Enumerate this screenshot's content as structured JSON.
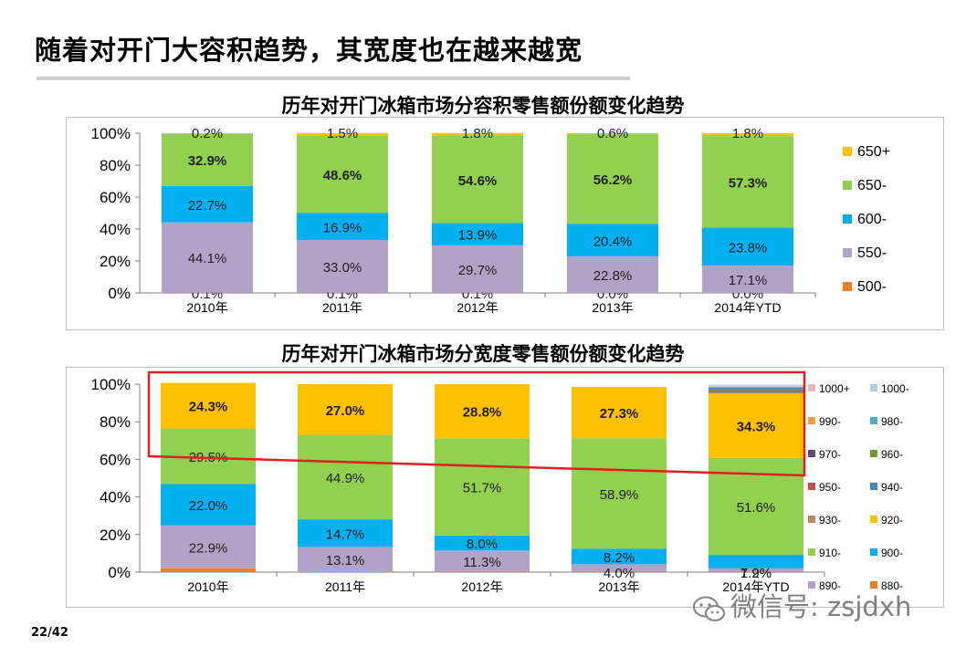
{
  "slide": {
    "title": "随着对开门大容积趋势，其宽度也在越来越宽",
    "page": "22/42",
    "watermark": "微信号: zsjdxh"
  },
  "chart_data": [
    {
      "type": "bar",
      "stacked": true,
      "title": "历年对开门冰箱市场分容积零售额份额变化趋势",
      "categories": [
        "2010年",
        "2011年",
        "2012年",
        "2013年",
        "2014年YTD"
      ],
      "ylim": [
        0,
        100
      ],
      "yticks": [
        "0%",
        "20%",
        "40%",
        "60%",
        "80%",
        "100%"
      ],
      "series": [
        {
          "name": "500-",
          "color": "#f57f20",
          "values": [
            0.1,
            0.1,
            0.1,
            0.0,
            0.0
          ],
          "labels": [
            "0.1%",
            "0.1%",
            "0.1%",
            "0.0%",
            "0.0%"
          ]
        },
        {
          "name": "550-",
          "color": "#b3a2c7",
          "values": [
            44.1,
            33.0,
            29.7,
            22.8,
            17.1
          ],
          "labels": [
            "44.1%",
            "33.0%",
            "29.7%",
            "22.8%",
            "17.1%"
          ]
        },
        {
          "name": "600-",
          "color": "#00b0f0",
          "values": [
            22.7,
            16.9,
            13.9,
            20.4,
            23.8
          ],
          "labels": [
            "22.7%",
            "16.9%",
            "13.9%",
            "20.4%",
            "23.8%"
          ]
        },
        {
          "name": "650-",
          "color": "#92d050",
          "values": [
            32.9,
            48.6,
            54.6,
            56.2,
            57.3
          ],
          "labels": [
            "32.9%",
            "48.6%",
            "54.6%",
            "56.2%",
            "57.3%"
          ]
        },
        {
          "name": "650+",
          "color": "#ffc000",
          "values": [
            0.2,
            1.5,
            1.8,
            0.6,
            1.8
          ],
          "labels": [
            "0.2%",
            "1.5%",
            "1.8%",
            "0.6%",
            "1.8%"
          ]
        }
      ],
      "legend_order": [
        "650+",
        "650-",
        "600-",
        "550-",
        "500-"
      ],
      "legend": "right"
    },
    {
      "type": "bar",
      "stacked": true,
      "title": "历年对开门冰箱市场分宽度零售额份额变化趋势",
      "categories": [
        "2010年",
        "2011年",
        "2012年",
        "2013年",
        "2014年YTD"
      ],
      "ylim": [
        0,
        100
      ],
      "yticks": [
        "0%",
        "20%",
        "40%",
        "60%",
        "80%",
        "100%"
      ],
      "series": [
        {
          "name": "880-",
          "color": "#f57f20",
          "values": [
            2.0,
            0.3,
            0.2,
            0.2,
            0.1
          ],
          "labels": [
            "",
            "",
            "",
            "",
            ""
          ]
        },
        {
          "name": "890-",
          "color": "#b3a2c7",
          "values": [
            22.9,
            13.1,
            11.3,
            4.0,
            1.9
          ],
          "labels": [
            "22.9%",
            "13.1%",
            "11.3%",
            "4.0%",
            "1.9%"
          ]
        },
        {
          "name": "900-",
          "color": "#00b0f0",
          "values": [
            22.0,
            14.7,
            8.0,
            8.2,
            7.2
          ],
          "labels": [
            "22.0%",
            "14.7%",
            "8.0%",
            "8.2%",
            "7.2%"
          ]
        },
        {
          "name": "910-",
          "color": "#92d050",
          "values": [
            29.5,
            44.9,
            51.7,
            58.9,
            51.6
          ],
          "labels": [
            "29.5%",
            "44.9%",
            "51.7%",
            "58.9%",
            "51.6%"
          ]
        },
        {
          "name": "920-",
          "color": "#ffc000",
          "values": [
            24.3,
            27.0,
            28.8,
            27.3,
            34.3
          ],
          "labels": [
            "24.3%",
            "27.0%",
            "28.8%",
            "27.3%",
            "34.3%"
          ]
        },
        {
          "name": "930-",
          "color": "#c0875a",
          "values": [
            0,
            0,
            0,
            0,
            0.5
          ],
          "labels": [
            "",
            "",
            "",
            "",
            ""
          ]
        },
        {
          "name": "940-",
          "color": "#4f81bd",
          "values": [
            0,
            0,
            0,
            0,
            1.0
          ],
          "labels": [
            "",
            "",
            "",
            "",
            ""
          ]
        },
        {
          "name": "950-",
          "color": "#c0504d",
          "values": [
            0,
            0,
            0,
            0,
            0.3
          ],
          "labels": [
            "",
            "",
            "",
            "",
            ""
          ]
        },
        {
          "name": "960-",
          "color": "#77933c",
          "values": [
            0,
            0,
            0,
            0,
            0.6
          ],
          "labels": [
            "",
            "",
            "",
            "",
            ""
          ]
        },
        {
          "name": "970-",
          "color": "#604a7b",
          "values": [
            0,
            0,
            0,
            0,
            0.3
          ],
          "labels": [
            "",
            "",
            "",
            "",
            ""
          ]
        },
        {
          "name": "980-",
          "color": "#4bacc6",
          "values": [
            0,
            0,
            0,
            0,
            0.6
          ],
          "labels": [
            "",
            "",
            "",
            "",
            ""
          ]
        },
        {
          "name": "990-",
          "color": "#f79646",
          "values": [
            0,
            0,
            0,
            0,
            0.2
          ],
          "labels": [
            "",
            "",
            "",
            "",
            ""
          ]
        },
        {
          "name": "1000-",
          "color": "#b9cde5",
          "values": [
            0,
            0,
            0,
            0,
            0.6
          ],
          "labels": [
            "",
            "",
            "",
            "",
            ""
          ]
        },
        {
          "name": "1000+",
          "color": "#e6b9b8",
          "values": [
            0,
            0,
            0,
            0,
            0.5
          ],
          "labels": [
            "",
            "",
            "",
            "",
            ""
          ]
        }
      ],
      "bold_series": [
        "920-"
      ],
      "legend_rows": [
        [
          "1000+",
          "1000-"
        ],
        [
          "990-",
          "980-"
        ],
        [
          "970-",
          "960-"
        ],
        [
          "950-",
          "940-"
        ],
        [
          "930-",
          "920-"
        ],
        [
          "910-",
          "900-"
        ],
        [
          "890-",
          "880-"
        ]
      ],
      "legend": "right",
      "highlight_color": "#e02020"
    }
  ]
}
